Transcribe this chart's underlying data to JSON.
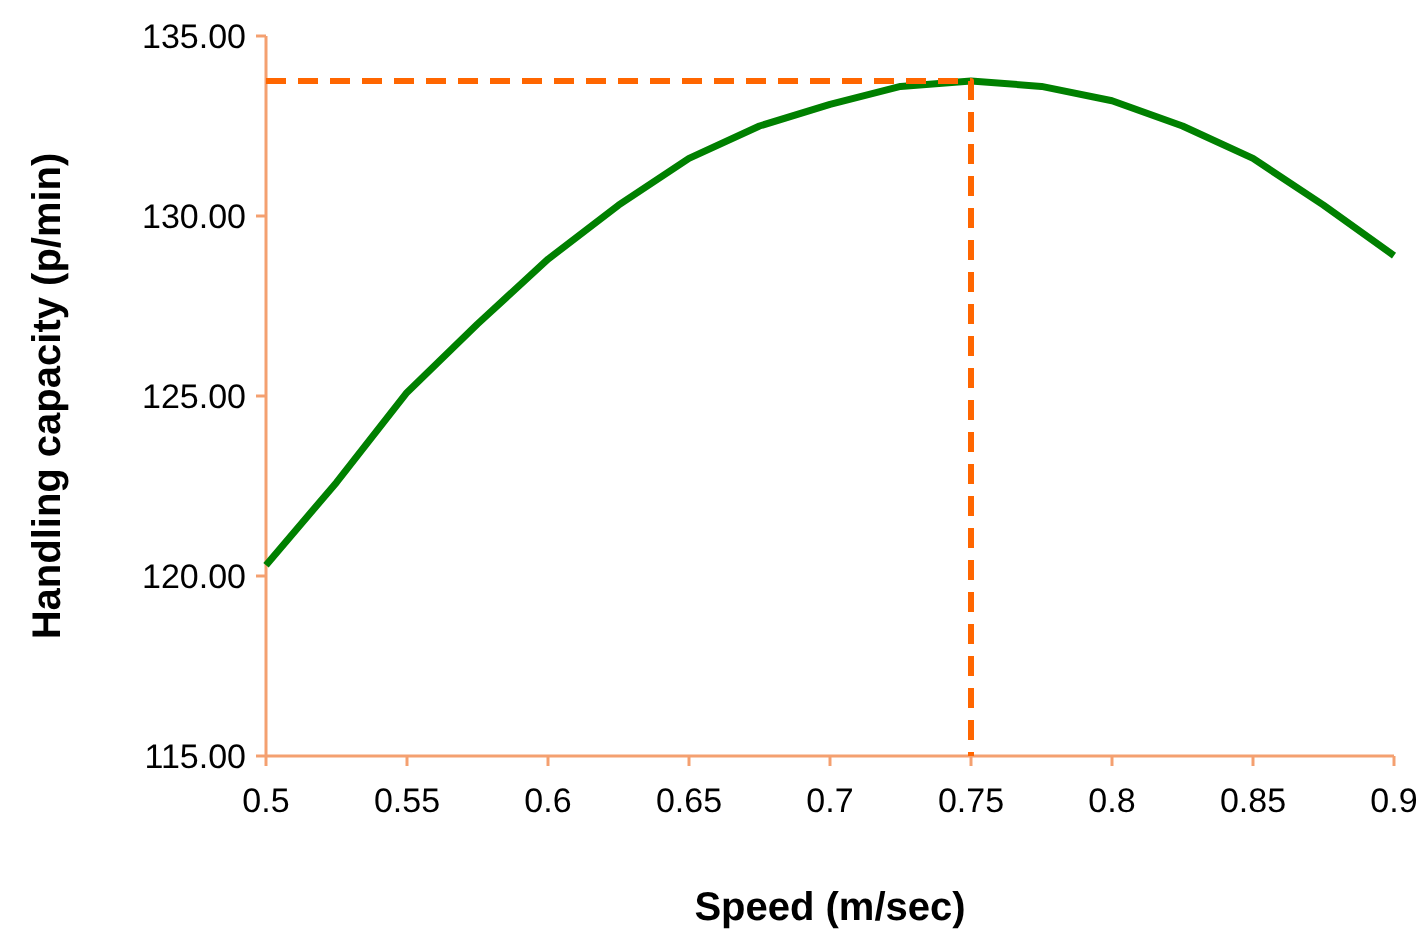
{
  "chart_data": {
    "type": "line",
    "xlabel": "Speed (m/sec)",
    "ylabel": "Handling capacity (p/min)",
    "xlim": [
      0.5,
      0.9
    ],
    "xticks": [
      {
        "value": 0.5,
        "label": "0.5"
      },
      {
        "value": 0.55,
        "label": "0.55"
      },
      {
        "value": 0.6,
        "label": "0.6"
      },
      {
        "value": 0.65,
        "label": "0.65"
      },
      {
        "value": 0.7,
        "label": "0.7"
      },
      {
        "value": 0.75,
        "label": "0.75"
      },
      {
        "value": 0.8,
        "label": "0.8"
      },
      {
        "value": 0.85,
        "label": "0.85"
      },
      {
        "value": 0.9,
        "label": "0.9"
      }
    ],
    "ylim": [
      115,
      135
    ],
    "yticks": [
      {
        "value": 115,
        "label": "115.00"
      },
      {
        "value": 120,
        "label": "120.00"
      },
      {
        "value": 125,
        "label": "125.00"
      },
      {
        "value": 130,
        "label": "130.00"
      },
      {
        "value": 135,
        "label": "135.00"
      }
    ],
    "grid": false,
    "marker": "none",
    "series": [
      {
        "color": "#008000",
        "line_style": "solid",
        "x": [
          0.5,
          0.525,
          0.55,
          0.575,
          0.6,
          0.625,
          0.65,
          0.675,
          0.7,
          0.725,
          0.75,
          0.775,
          0.8,
          0.825,
          0.85,
          0.875,
          0.9
        ],
        "values": [
          120.3,
          122.6,
          125.1,
          127.0,
          128.8,
          130.3,
          131.6,
          132.5,
          133.1,
          133.6,
          133.75,
          133.6,
          133.2,
          132.5,
          131.6,
          130.3,
          128.9
        ]
      },
      {
        "color": "#ff6600",
        "line_style": "dashed",
        "x": [
          0.5,
          0.75,
          0.75
        ],
        "values": [
          133.75,
          133.75,
          115
        ]
      }
    ]
  }
}
